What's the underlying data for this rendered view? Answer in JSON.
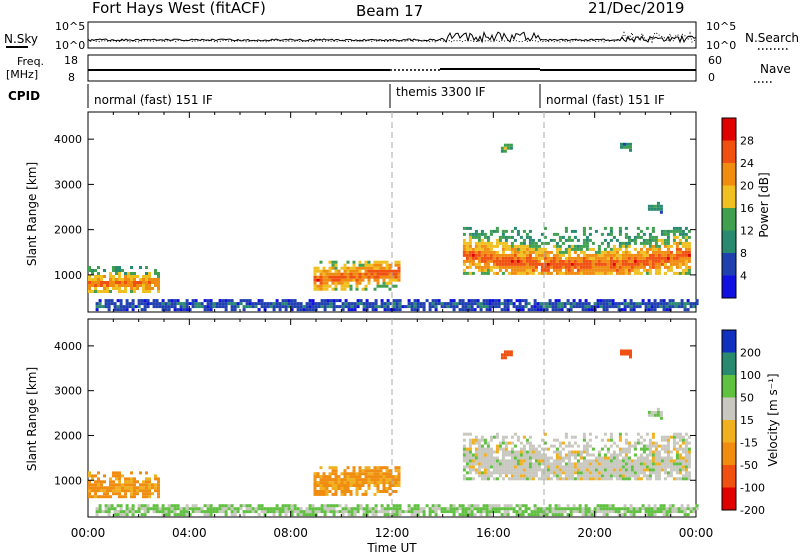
{
  "header": {
    "station": "Fort Hays West (fitACF)",
    "beam": "Beam 17",
    "date": "21/Dec/2019"
  },
  "top_panels": {
    "nsky_label": "N.Sky",
    "nsky_scale_top": "10^5",
    "nsky_scale_bottom": "10^0",
    "nsearch_label": "N.Search",
    "nsearch_scale_top": "10^5",
    "nsearch_scale_bottom": "10^0",
    "freq_label": "Freq.",
    "freq_unit": "[MHz]",
    "freq_ticks": [
      "18",
      "8"
    ],
    "nave_label": "Nave",
    "nave_ticks": [
      "60",
      "0"
    ],
    "cpid_label": "CPID",
    "cpid_segments": [
      {
        "label": "normal (fast) 151 IF",
        "start_h": 0,
        "end_h": 12
      },
      {
        "label": "themis 3300 IF",
        "start_h": 12,
        "end_h": 18
      },
      {
        "label": "normal (fast) 151 IF",
        "start_h": 18,
        "end_h": 24
      }
    ]
  },
  "colors": {
    "power_scale": [
      "#1010e0",
      "#2040b0",
      "#2a8a70",
      "#40a050",
      "#f0c020",
      "#f08c10",
      "#f05010",
      "#e00000"
    ],
    "velocity_scale": [
      "#e00000",
      "#f05010",
      "#f08c10",
      "#f0b020",
      "#c8c8c0",
      "#60c040",
      "#2a8a70",
      "#1030c0"
    ]
  },
  "chart_data": [
    {
      "type": "heatmap",
      "panel": "power",
      "ylabel": "Slant Range [km]",
      "ylim": [
        180,
        4600
      ],
      "y_ticks": [
        "1000",
        "2000",
        "3000",
        "4000"
      ],
      "xlim_hours": [
        0,
        24
      ],
      "colorbar_label": "Power [dB]",
      "colorbar_ticks": [
        "4",
        "8",
        "12",
        "16",
        "20",
        "24",
        "28"
      ],
      "regions": [
        {
          "t0": 0.0,
          "t1": 2.8,
          "r0": 600,
          "r1": 1150,
          "core_r": 780,
          "core_value": 24,
          "edge_value": 12
        },
        {
          "t0": 8.9,
          "t1": 12.3,
          "r0": 650,
          "r1": 1300,
          "core_r": 850,
          "core_value": 26,
          "edge_value": 14
        },
        {
          "t0": 14.8,
          "t1": 23.8,
          "r0": 1000,
          "r1": 2000,
          "core_r": 1420,
          "core_value": 26,
          "edge_value": 12
        },
        {
          "t0": 0.3,
          "t1": 24.0,
          "r0": 200,
          "r1": 420,
          "core_r": 300,
          "core_value": 8,
          "edge_value": 4
        },
        {
          "t0": 16.3,
          "t1": 16.7,
          "r0": 3700,
          "r1": 3850,
          "core_r": 3770,
          "core_value": 14,
          "edge_value": 10
        },
        {
          "t0": 21.0,
          "t1": 21.4,
          "r0": 3720,
          "r1": 3900,
          "core_r": 3800,
          "core_value": 12,
          "edge_value": 8
        },
        {
          "t0": 22.1,
          "t1": 22.6,
          "r0": 2350,
          "r1": 2550,
          "core_r": 2450,
          "core_value": 12,
          "edge_value": 8
        }
      ]
    },
    {
      "type": "heatmap",
      "panel": "velocity",
      "ylabel": "Slant Range [km]",
      "xlabel": "Time UT",
      "ylim": [
        180,
        4600
      ],
      "y_ticks": [
        "1000",
        "2000",
        "3000",
        "4000"
      ],
      "x_ticks": [
        "00:00",
        "04:00",
        "08:00",
        "12:00",
        "16:00",
        "20:00",
        "00:00"
      ],
      "xlim_hours": [
        0,
        24
      ],
      "colorbar_label": "Velocity [m s⁻¹]",
      "colorbar_ticks": [
        "200",
        "100",
        "50",
        "15",
        "-15",
        "-50",
        "-100",
        "-200"
      ],
      "regions": [
        {
          "t0": 0.0,
          "t1": 2.8,
          "r0": 550,
          "r1": 1150,
          "value": -60
        },
        {
          "t0": 8.9,
          "t1": 12.3,
          "r0": 650,
          "r1": 1300,
          "value": -55
        },
        {
          "t0": 14.8,
          "t1": 23.8,
          "r0": 900,
          "r1": 2050,
          "value": 0
        },
        {
          "t0": 0.3,
          "t1": 24.0,
          "r0": 200,
          "r1": 420,
          "value": 20
        },
        {
          "t0": 16.3,
          "t1": 16.7,
          "r0": 3700,
          "r1": 3850,
          "value": -150
        },
        {
          "t0": 21.0,
          "t1": 21.4,
          "r0": 3720,
          "r1": 3900,
          "value": -180
        },
        {
          "t0": 22.1,
          "t1": 22.6,
          "r0": 2350,
          "r1": 2550,
          "value": 20
        }
      ]
    }
  ]
}
